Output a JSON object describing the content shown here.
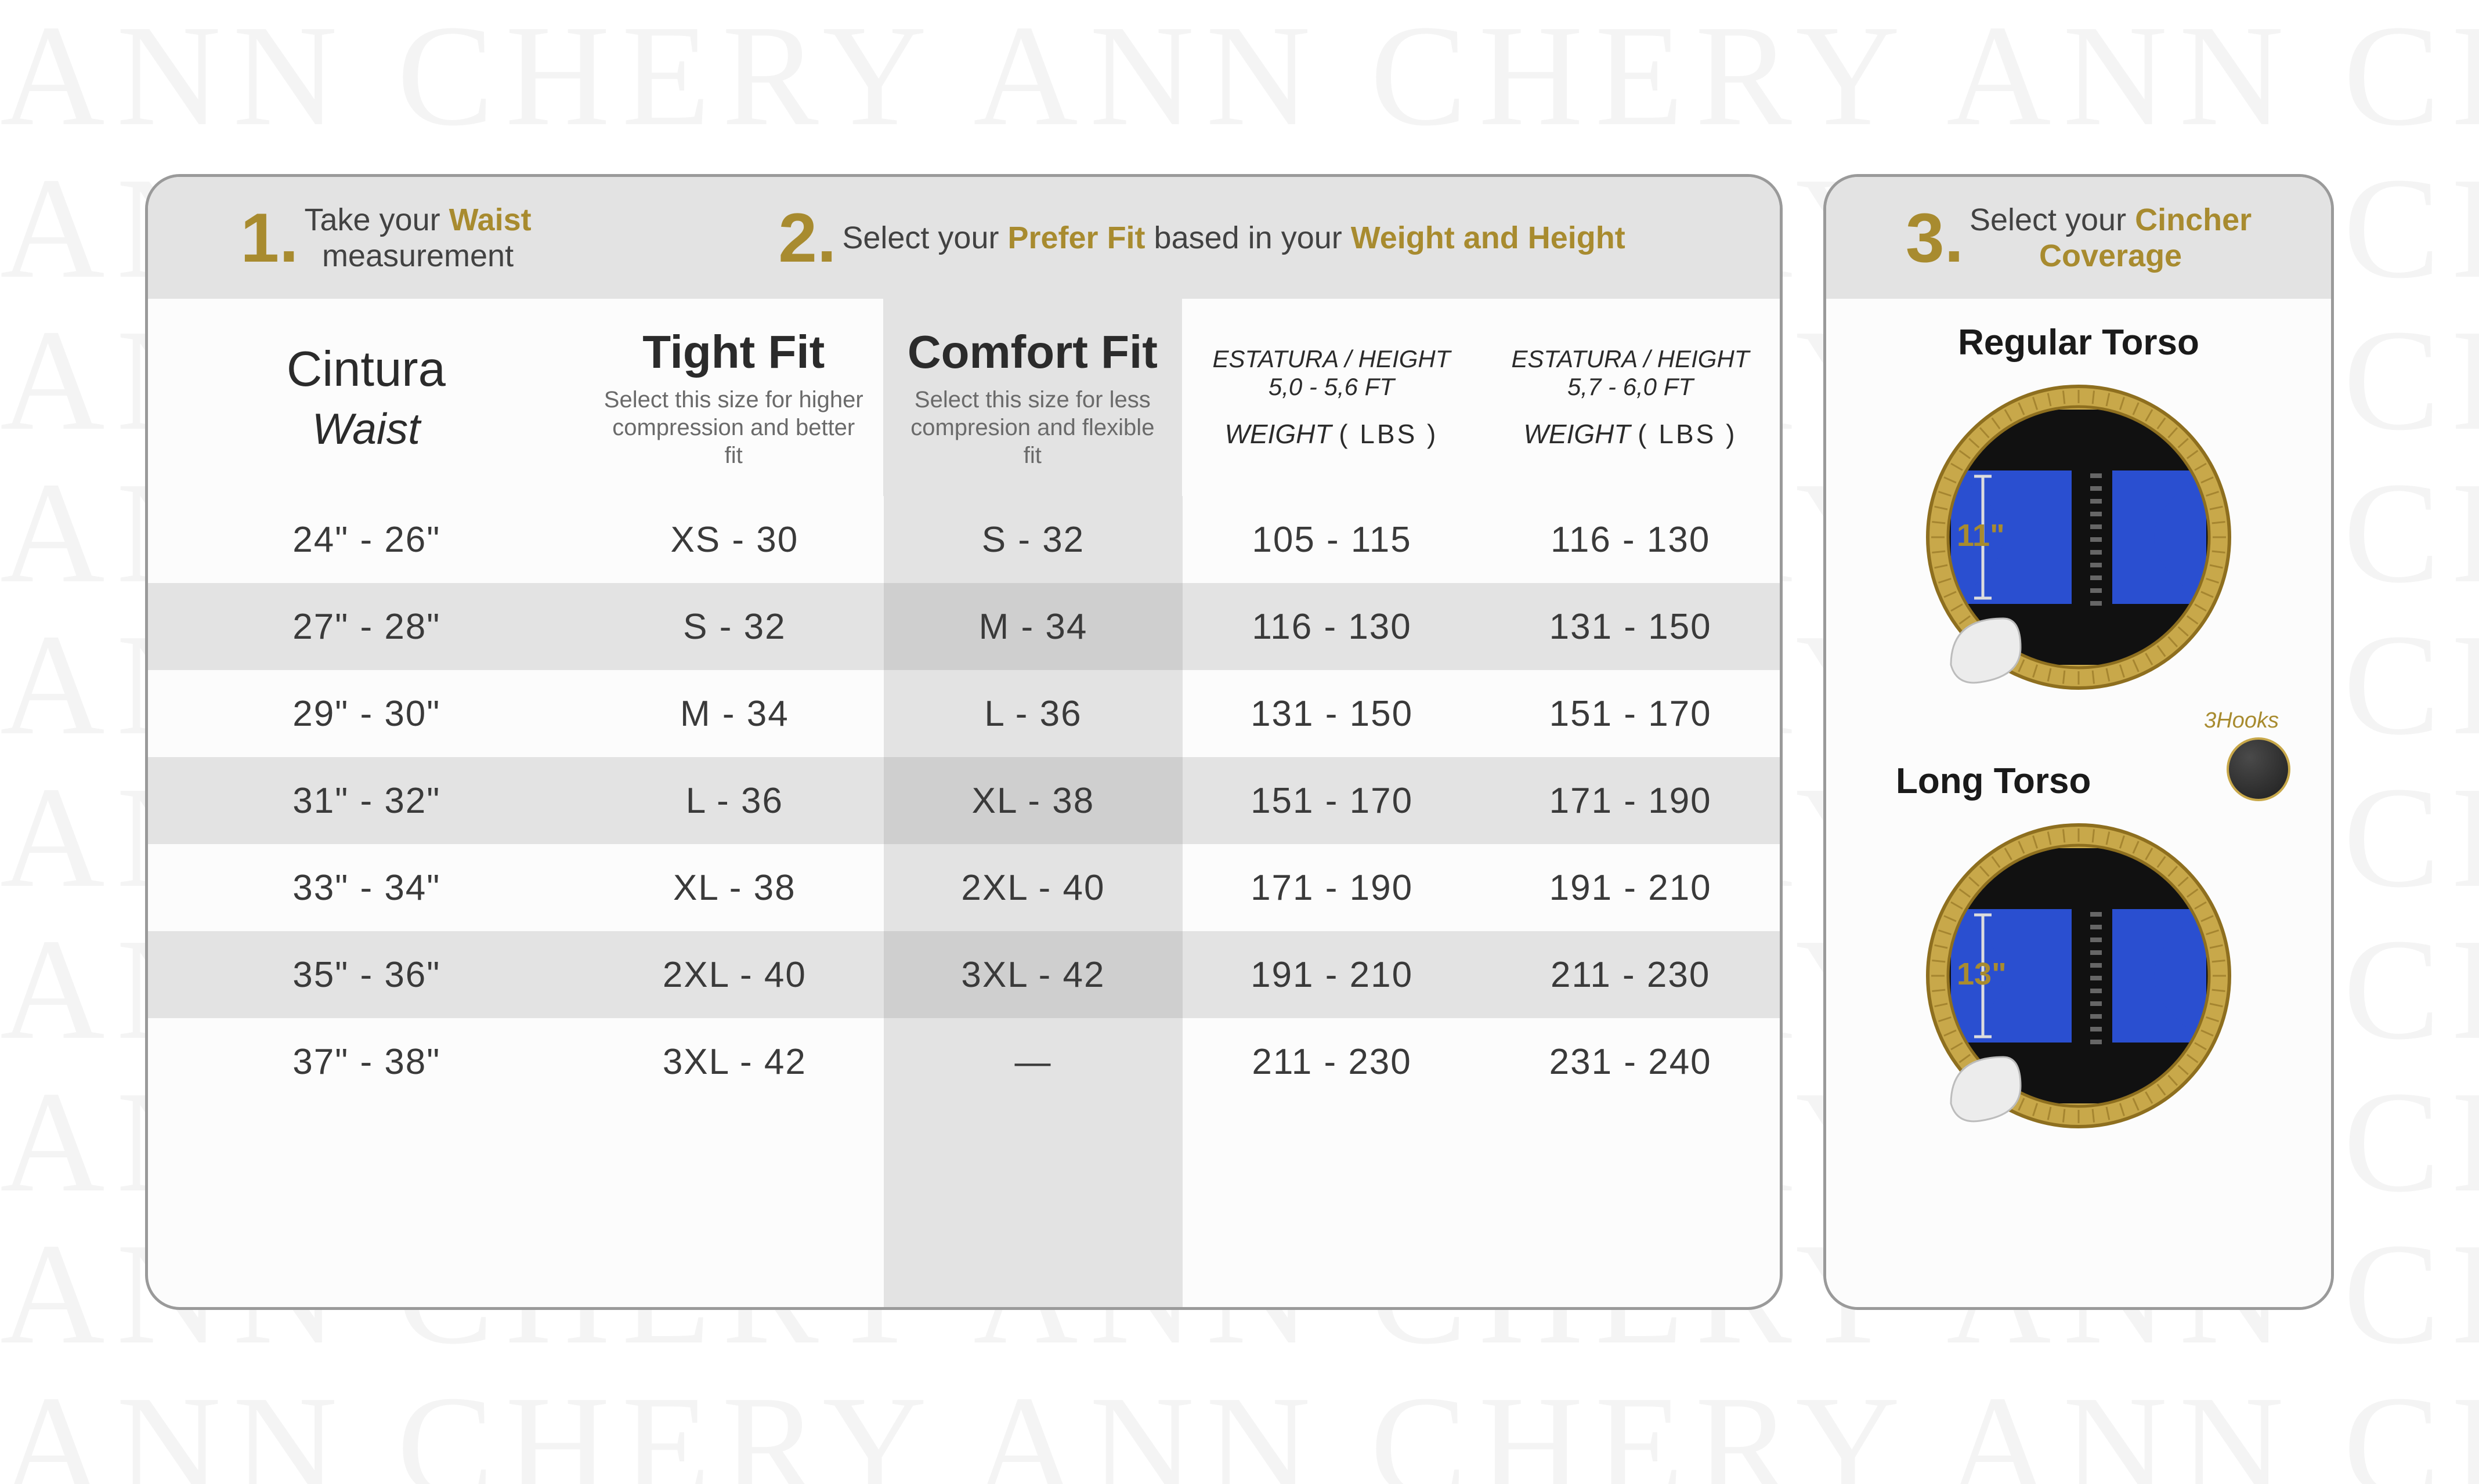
{
  "watermark_text": "ANN CHERY ANN CHERY ANN CHERY ANN CH",
  "colors": {
    "gold": "#a88b2f",
    "gold_light": "#c8a84a",
    "panel_border": "#9a9a9a",
    "header_bg": "#e3e3e3",
    "row_alt": "#e3e3e3",
    "comfort_col": "#e3e3e3",
    "comfort_alt": "#cfcfcf",
    "text": "#3a3a3a",
    "cincher_blue": "#2a4fd0",
    "cincher_black": "#111111"
  },
  "steps": {
    "s1": {
      "num": "1.",
      "line1": "Take your ",
      "hl1": "Waist",
      "line2": "measurement"
    },
    "s2": {
      "num": "2.",
      "pre": "Select your ",
      "hl1": "Prefer Fit",
      "mid": " based in your ",
      "hl2": "Weight and Height"
    },
    "s3": {
      "num": "3.",
      "line1": "Select your ",
      "hl1": "Cincher",
      "line2_hl": "Coverage"
    }
  },
  "columns": {
    "waist": {
      "t1": "Cintura",
      "t2": "Waist"
    },
    "tight": {
      "t1": "Tight Fit",
      "sub": "Select this size for higher compression and better fit"
    },
    "comfort": {
      "t1": "Comfort Fit",
      "sub": "Select this size for less compresion and flexible fit"
    },
    "h1": {
      "ht": "ESTATURA / HEIGHT",
      "range": "5,0 - 5,6 FT",
      "wt_i": "WEIGHT",
      "wt_u": "( LBS )"
    },
    "h2": {
      "ht": "ESTATURA / HEIGHT",
      "range": "5,7 - 6,0 FT",
      "wt_i": "WEIGHT",
      "wt_u": "( LBS )"
    }
  },
  "rows": [
    {
      "waist": "24\" - 26\"",
      "tight": "XS - 30",
      "comfort": "S - 32",
      "w1": "105 - 115",
      "w2": "116 - 130"
    },
    {
      "waist": "27\" - 28\"",
      "tight": "S - 32",
      "comfort": "M - 34",
      "w1": "116 - 130",
      "w2": "131 - 150"
    },
    {
      "waist": "29\" - 30\"",
      "tight": "M - 34",
      "comfort": "L - 36",
      "w1": "131 - 150",
      "w2": "151 - 170"
    },
    {
      "waist": "31\" - 32\"",
      "tight": "L - 36",
      "comfort": "XL - 38",
      "w1": "151 - 170",
      "w2": "171 - 190"
    },
    {
      "waist": "33\" - 34\"",
      "tight": "XL - 38",
      "comfort": "2XL - 40",
      "w1": "171 - 190",
      "w2": "191 - 210"
    },
    {
      "waist": "35\" - 36\"",
      "tight": "2XL - 40",
      "comfort": "3XL - 42",
      "w1": "191 - 210",
      "w2": "211 - 230"
    },
    {
      "waist": "37\" - 38\"",
      "tight": "3XL - 42",
      "comfort": "—",
      "w1": "211 - 230",
      "w2": "231 - 240"
    }
  ],
  "torso": {
    "regular": {
      "label": "Regular Torso",
      "inches": "11\""
    },
    "long": {
      "label": "Long Torso",
      "inches": "13\""
    },
    "hooks_label": "3Hooks"
  },
  "cincher_svg": {
    "ring_outer_r": 260,
    "ring_inner_r": 225,
    "ring_fill": "#c8a84a",
    "ring_stroke": "#8e6f1f",
    "body_black": "#111111",
    "panel_blue": "#2a4fd0",
    "tag_gold": "#a88b2f",
    "curl_fill": "#ececec",
    "curl_stroke": "#bcbcbc"
  }
}
